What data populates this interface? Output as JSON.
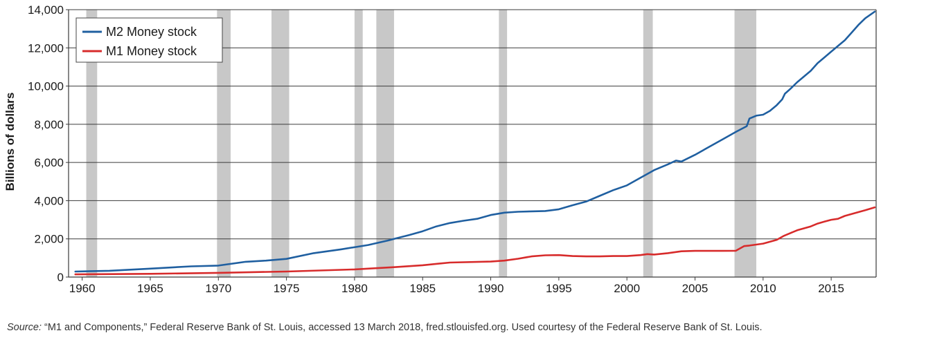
{
  "chart_data": {
    "type": "line",
    "ylabel": "Billions of dollars",
    "xlabel": "",
    "xlim": [
      1959,
      2018.3
    ],
    "ylim": [
      0,
      14000
    ],
    "x_ticks": [
      1960,
      1965,
      1970,
      1975,
      1980,
      1985,
      1990,
      1995,
      2000,
      2005,
      2010,
      2015
    ],
    "y_ticks": [
      0,
      2000,
      4000,
      6000,
      8000,
      10000,
      12000,
      14000
    ],
    "y_tick_labels": [
      "0",
      "2,000",
      "4,000",
      "6,000",
      "8,000",
      "10,000",
      "12,000",
      "14,000"
    ],
    "grid": "horizontal",
    "legend_position": "top-left",
    "recessions": [
      [
        1960.3,
        1961.1
      ],
      [
        1969.9,
        1970.9
      ],
      [
        1973.9,
        1975.2
      ],
      [
        1980.0,
        1980.6
      ],
      [
        1981.6,
        1982.9
      ],
      [
        1990.6,
        1991.2
      ],
      [
        2001.2,
        2001.9
      ],
      [
        2007.9,
        2009.5
      ]
    ],
    "series": [
      {
        "name": "M2 Money stock",
        "color": "#1f5fa0",
        "x": [
          1959.5,
          1962,
          1965,
          1968,
          1970,
          1972,
          1973.5,
          1975,
          1977,
          1979,
          1981,
          1982.5,
          1983,
          1984,
          1985,
          1986,
          1987,
          1988,
          1989,
          1990,
          1991,
          1992,
          1993,
          1994,
          1995,
          1996,
          1997,
          1998,
          1999,
          2000,
          2001,
          2002,
          2003,
          2003.6,
          2004,
          2005,
          2006,
          2007,
          2008,
          2008.8,
          2009,
          2009.5,
          2010,
          2010.5,
          2011,
          2011.4,
          2011.6,
          2012,
          2012.5,
          2013,
          2013.5,
          2014,
          2014.5,
          2015,
          2015.5,
          2016,
          2016.5,
          2017,
          2017.5,
          2018.2
        ],
        "values": [
          290,
          330,
          440,
          560,
          600,
          800,
          860,
          950,
          1250,
          1450,
          1680,
          1920,
          2020,
          2200,
          2400,
          2650,
          2830,
          2950,
          3050,
          3250,
          3370,
          3420,
          3440,
          3460,
          3550,
          3760,
          3950,
          4250,
          4550,
          4800,
          5200,
          5600,
          5900,
          6100,
          6050,
          6400,
          6800,
          7200,
          7600,
          7900,
          8300,
          8450,
          8500,
          8700,
          9000,
          9300,
          9600,
          9850,
          10200,
          10500,
          10800,
          11200,
          11500,
          11800,
          12100,
          12400,
          12800,
          13200,
          13550,
          13900
        ]
      },
      {
        "name": "M1 Money stock",
        "color": "#d72b2b",
        "x": [
          1959.5,
          1965,
          1970,
          1975,
          1980,
          1983,
          1985,
          1987,
          1990,
          1991,
          1992,
          1993,
          1994,
          1995,
          1996,
          1997,
          1998,
          1999,
          2000,
          2001,
          2001.5,
          2002,
          2003,
          2004,
          2005,
          2006,
          2007,
          2008,
          2008.6,
          2009,
          2010,
          2011,
          2011.5,
          2012,
          2012.5,
          2013,
          2013.5,
          2014,
          2014.5,
          2015,
          2015.5,
          2016,
          2016.5,
          2017,
          2017.5,
          2018.2
        ],
        "values": [
          140,
          170,
          220,
          290,
          400,
          520,
          620,
          760,
          810,
          860,
          960,
          1080,
          1140,
          1150,
          1100,
          1080,
          1080,
          1100,
          1100,
          1150,
          1200,
          1180,
          1250,
          1350,
          1370,
          1370,
          1370,
          1380,
          1620,
          1650,
          1750,
          1950,
          2150,
          2300,
          2450,
          2550,
          2650,
          2800,
          2900,
          3000,
          3050,
          3200,
          3300,
          3400,
          3500,
          3650
        ]
      }
    ]
  },
  "source": {
    "label": "Source:",
    "text": " “M1 and Components,” Federal Reserve Bank of St. Louis, accessed 13 March 2018, fred.stlouisfed.org. Used courtesy of the Federal Reserve Bank of St. Louis."
  }
}
